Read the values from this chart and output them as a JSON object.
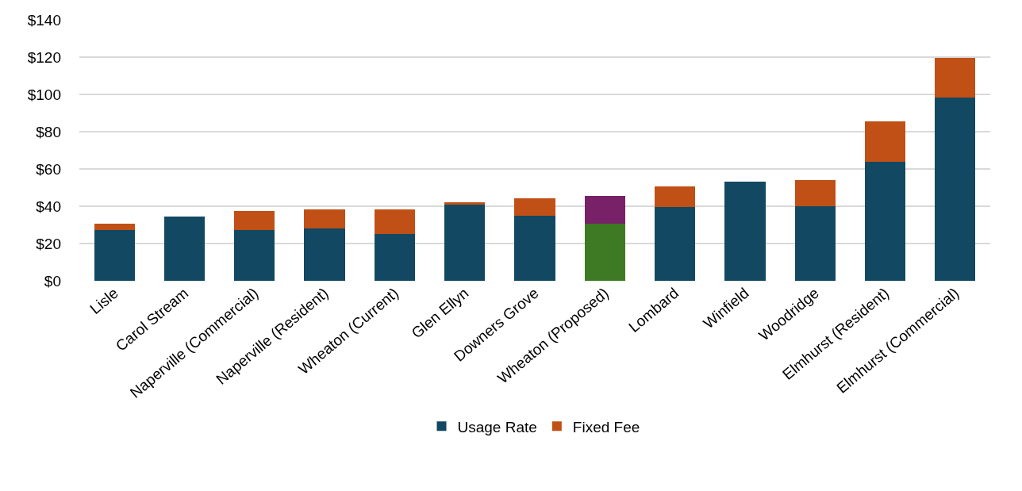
{
  "chart_data": {
    "type": "bar",
    "stacked": true,
    "categories": [
      "Lisle",
      "Carol Stream",
      "Naperville (Commercial)",
      "Naperville (Resident)",
      "Wheaton (Current)",
      "Glen Ellyn",
      "Downers Grove",
      "Wheaton (Proposed)",
      "Lombard",
      "Winfield",
      "Woodridge",
      "Elmhurst (Resident)",
      "Elmhurst (Commercial)"
    ],
    "series": [
      {
        "name": "Usage Rate",
        "color": "#124862",
        "colors": [
          "#124862",
          "#124862",
          "#124862",
          "#124862",
          "#124862",
          "#124862",
          "#124862",
          "#3d7a23",
          "#124862",
          "#124862",
          "#124862",
          "#124862",
          "#124862"
        ],
        "values": [
          27.3,
          34.5,
          27.3,
          28.0,
          24.9,
          40.9,
          35.1,
          30.7,
          39.7,
          53.0,
          40.0,
          64.0,
          98.2
        ]
      },
      {
        "name": "Fixed Fee",
        "color": "#c05016",
        "colors": [
          "#c05016",
          "#c05016",
          "#c05016",
          "#c05016",
          "#c05016",
          "#c05016",
          "#c05016",
          "#782068",
          "#c05016",
          "#c05016",
          "#c05016",
          "#c05016",
          "#c05016"
        ],
        "values": [
          3.3,
          null,
          10.3,
          10.5,
          13.6,
          1.2,
          9.0,
          14.8,
          11.1,
          null,
          13.9,
          21.4,
          21.2
        ]
      }
    ],
    "ylim": [
      0,
      140
    ],
    "yticks": [
      {
        "value": 0,
        "label": "$0"
      },
      {
        "value": 20,
        "label": "$20"
      },
      {
        "value": 40,
        "label": "$40"
      },
      {
        "value": 60,
        "label": "$60"
      },
      {
        "value": 80,
        "label": "$80"
      },
      {
        "value": 100,
        "label": "$100"
      },
      {
        "value": 120,
        "label": "$120"
      },
      {
        "value": 140,
        "label": "$140"
      }
    ],
    "grid": "y",
    "legend": "bottom"
  }
}
